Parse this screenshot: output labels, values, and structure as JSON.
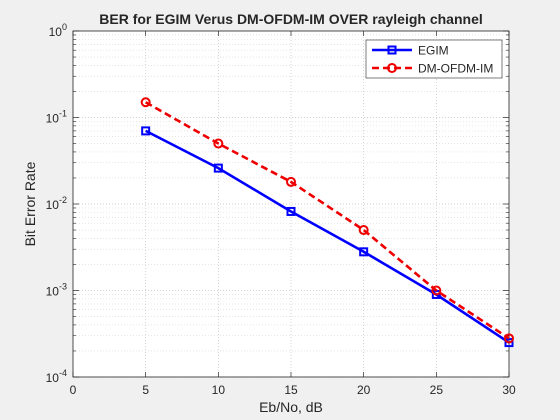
{
  "chart_data": {
    "type": "line",
    "title": "BER for EGIM Verus DM-OFDM-IM  OVER rayleigh channel",
    "xlabel": "Eb/No, dB",
    "ylabel": "Bit Error Rate",
    "xlim": [
      0,
      30
    ],
    "ylim": [
      0.0001,
      1
    ],
    "yscale": "log",
    "grid": true,
    "minor_grid": true,
    "legend_position": "top-right",
    "x_ticks": [
      "0",
      "5",
      "10",
      "15",
      "20",
      "25",
      "30"
    ],
    "y_ticks": [
      {
        "base": "10",
        "exp": "0"
      },
      {
        "base": "10",
        "exp": "-1"
      },
      {
        "base": "10",
        "exp": "-2"
      },
      {
        "base": "10",
        "exp": "-3"
      },
      {
        "base": "10",
        "exp": "-4"
      }
    ],
    "x": [
      5,
      10,
      15,
      20,
      25,
      30
    ],
    "series": [
      {
        "name": "EGIM",
        "color": "#0000ff",
        "line_style": "solid",
        "marker": "square",
        "values": [
          0.07,
          0.026,
          0.0082,
          0.0028,
          0.0009,
          0.00025
        ]
      },
      {
        "name": "DM-OFDM-IM",
        "color": "#ee0000",
        "line_style": "dashed",
        "marker": "circle",
        "values": [
          0.15,
          0.05,
          0.018,
          0.005,
          0.001,
          0.00028
        ]
      }
    ]
  }
}
